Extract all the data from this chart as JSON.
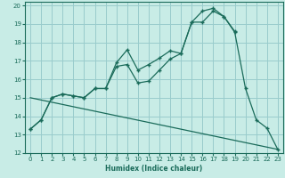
{
  "xlabel": "Humidex (Indice chaleur)",
  "bg_color": "#c8ece6",
  "grid_color": "#99cccc",
  "line_color": "#1a6b5a",
  "xlim": [
    -0.5,
    23.5
  ],
  "ylim": [
    12,
    20.2
  ],
  "xticks": [
    0,
    1,
    2,
    3,
    4,
    5,
    6,
    7,
    8,
    9,
    10,
    11,
    12,
    13,
    14,
    15,
    16,
    17,
    18,
    19,
    20,
    21,
    22,
    23
  ],
  "yticks": [
    12,
    13,
    14,
    15,
    16,
    17,
    18,
    19,
    20
  ],
  "line1_x": [
    0,
    1,
    2,
    3,
    4,
    5,
    6,
    7,
    8,
    9,
    10,
    11,
    12,
    13,
    14,
    15,
    16,
    17,
    18,
    19,
    20,
    21,
    22,
    23
  ],
  "line1_y": [
    13.3,
    13.8,
    15.0,
    15.2,
    15.1,
    15.0,
    15.5,
    15.5,
    16.9,
    17.6,
    16.5,
    16.8,
    17.15,
    17.55,
    17.4,
    19.1,
    19.7,
    19.85,
    19.4,
    18.55,
    15.5,
    13.8,
    13.35,
    12.2
  ],
  "line2_x": [
    0,
    1,
    2,
    3,
    4,
    5,
    6,
    7,
    8,
    9,
    10,
    11,
    12,
    13,
    14,
    15,
    16,
    17,
    18,
    19
  ],
  "line2_y": [
    13.3,
    13.8,
    15.0,
    15.2,
    15.1,
    15.0,
    15.5,
    15.5,
    16.7,
    16.8,
    15.8,
    15.9,
    16.5,
    17.1,
    17.4,
    19.1,
    19.1,
    19.7,
    19.4,
    18.6
  ],
  "line3_x": [
    0,
    23
  ],
  "line3_y": [
    15.0,
    12.2
  ]
}
